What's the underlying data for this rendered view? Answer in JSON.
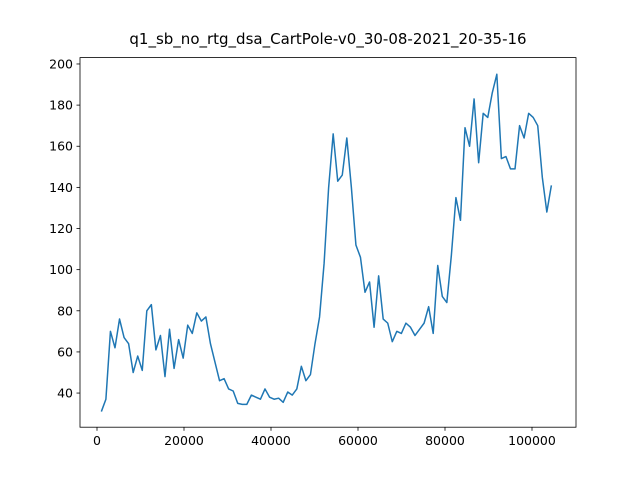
{
  "chart_data": {
    "type": "line",
    "title": "q1_sb_no_rtg_dsa_CartPole-v0_30-08-2021_20-35-16",
    "x": [
      1000,
      2045,
      3090,
      4135,
      5180,
      6225,
      7270,
      8315,
      9360,
      10405,
      11450,
      12495,
      13540,
      14585,
      15630,
      16675,
      17720,
      18765,
      19810,
      20855,
      21900,
      22945,
      23990,
      25035,
      26080,
      27125,
      28170,
      29215,
      30260,
      31305,
      32350,
      33395,
      34440,
      35485,
      36530,
      37575,
      38620,
      39665,
      40710,
      41755,
      42800,
      43845,
      44890,
      45935,
      46980,
      48025,
      49070,
      50115,
      51160,
      52205,
      53250,
      54295,
      55340,
      56385,
      57430,
      58475,
      59520,
      60565,
      61610,
      62655,
      63700,
      64745,
      65790,
      66835,
      67880,
      68925,
      69970,
      71015,
      72060,
      73105,
      74150,
      75195,
      76240,
      77285,
      78330,
      79375,
      80420,
      81465,
      82510,
      83555,
      84600,
      85645,
      86690,
      87735,
      88780,
      89825,
      90870,
      91915,
      92960,
      94005,
      95050,
      96095,
      97140,
      98185,
      99230,
      100275,
      101320,
      102365,
      103410,
      104455
    ],
    "series": [
      {
        "color": "#1f77b4",
        "values": [
          31,
          37,
          70,
          62,
          76,
          67,
          64,
          50,
          58,
          51,
          80,
          83,
          61,
          68,
          48,
          71,
          52,
          66,
          57,
          73,
          69,
          79,
          75,
          77,
          64,
          55,
          46,
          47,
          42,
          41,
          35,
          34.5,
          34.5,
          39,
          38,
          37,
          42,
          38,
          37,
          37.5,
          35.5,
          40.5,
          39,
          42,
          53,
          46,
          49,
          64,
          77,
          103,
          140,
          166,
          143,
          146,
          164,
          140,
          112,
          106,
          89,
          94,
          72,
          97,
          76,
          74,
          65,
          70,
          69,
          74,
          72,
          68,
          71,
          74,
          82,
          69,
          102,
          87,
          84,
          107,
          135,
          124,
          169,
          160,
          183,
          152,
          176,
          174,
          186,
          195,
          154,
          155,
          149,
          149,
          170,
          164,
          176,
          174,
          170,
          145,
          128,
          141
        ]
      }
    ],
    "xlim": [
      -3908,
      110115
    ],
    "ylim": [
      23.4,
      203.1
    ],
    "xticks": [
      0,
      20000,
      40000,
      60000,
      80000,
      100000
    ],
    "yticks": [
      40,
      60,
      80,
      100,
      120,
      140,
      160,
      180,
      200
    ]
  }
}
